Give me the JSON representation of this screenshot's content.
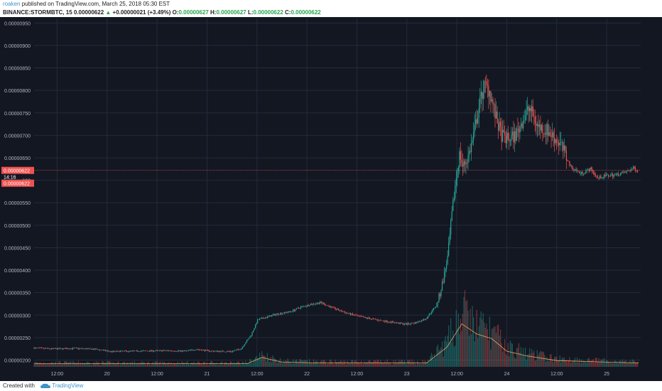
{
  "header": {
    "author": "roaken",
    "published": "published on TradingView.com, March 25, 2018 05:30 EST",
    "symbol": "BINANCE:STORMBTC, 15",
    "last": "0.00000622",
    "change_arrow": "▲",
    "change": "+0.00000021 (+3.49%)",
    "o_label": "O:",
    "o_value": "0.00000627",
    "h_label": "H:",
    "h_value": "0.00000627",
    "l_label": "L:",
    "l_value": "0.00000622",
    "c_label": "C:",
    "c_value": "0.00000622"
  },
  "footer": {
    "created_with": "Created with",
    "brand": "TradingView",
    "brand_icon": "tradingview-cloud-icon"
  },
  "colors": {
    "background": "#131722",
    "grid": "#232a3b",
    "up": "#26a69a",
    "down": "#ef5350",
    "volume_ma": "#e8a45c",
    "axis_text": "#b2b5be",
    "price_line": "#ef5350"
  },
  "price_tags": {
    "last_price": "0.00000622",
    "countdown": "14:16",
    "close": "0.00000622"
  },
  "chart_data": {
    "type": "candlestick",
    "title": "",
    "y_tick_labels": [
      "0.00000950",
      "0.00000900",
      "0.00000850",
      "0.00000800",
      "0.00000750",
      "0.00000700",
      "0.00000650",
      "0.00000600",
      "0.00000550",
      "0.00000500",
      "0.00000450",
      "0.00000400",
      "0.00000350",
      "0.00000300",
      "0.00000250",
      "0.00000200"
    ],
    "x_tick_labels": [
      "12:00",
      "20",
      "12:00",
      "21",
      "12:00",
      "22",
      "12:00",
      "23",
      "12:00",
      "24",
      "12:00",
      "25"
    ],
    "x_tick_times": [
      0.5,
      1.0,
      1.5,
      2.0,
      2.5,
      3.0,
      3.5,
      4.0,
      4.5,
      5.0,
      5.5,
      6.0
    ],
    "x_range_days": [
      0.27,
      6.34
    ],
    "ylim": [
      1.85e-06,
      9.6e-06
    ],
    "price_path": [
      [
        0.27,
        2.27e-06
      ],
      [
        0.45,
        2.25e-06
      ],
      [
        0.7,
        2.26e-06
      ],
      [
        0.9,
        2.24e-06
      ],
      [
        1.05,
        2.19e-06
      ],
      [
        1.3,
        2.2e-06
      ],
      [
        1.6,
        2.21e-06
      ],
      [
        1.8,
        2.2e-06
      ],
      [
        1.9,
        2.24e-06
      ],
      [
        2.05,
        2.2e-06
      ],
      [
        2.25,
        2.19e-06
      ],
      [
        2.35,
        2.25e-06
      ],
      [
        2.45,
        2.55e-06
      ],
      [
        2.52,
        2.9e-06
      ],
      [
        2.6,
        2.95e-06
      ],
      [
        2.7,
        3.02e-06
      ],
      [
        2.85,
        3.08e-06
      ],
      [
        2.95,
        3.18e-06
      ],
      [
        3.05,
        3.24e-06
      ],
      [
        3.15,
        3.28e-06
      ],
      [
        3.25,
        3.18e-06
      ],
      [
        3.4,
        3.05e-06
      ],
      [
        3.55,
        2.96e-06
      ],
      [
        3.75,
        2.88e-06
      ],
      [
        3.9,
        2.83e-06
      ],
      [
        4.0,
        2.8e-06
      ],
      [
        4.1,
        2.83e-06
      ],
      [
        4.2,
        2.92e-06
      ],
      [
        4.3,
        3.2e-06
      ],
      [
        4.34,
        3.45e-06
      ],
      [
        4.38,
        3.85e-06
      ],
      [
        4.42,
        4.3e-06
      ],
      [
        4.46,
        5.2e-06
      ],
      [
        4.5,
        6e-06
      ],
      [
        4.54,
        6.6e-06
      ],
      [
        4.57,
        6.3e-06
      ],
      [
        4.62,
        6.5e-06
      ],
      [
        4.67,
        6.9e-06
      ],
      [
        4.72,
        7.5e-06
      ],
      [
        4.78,
        8.1e-06
      ],
      [
        4.84,
        8e-06
      ],
      [
        4.9,
        7.4e-06
      ],
      [
        4.96,
        7e-06
      ],
      [
        5.02,
        6.9e-06
      ],
      [
        5.1,
        7e-06
      ],
      [
        5.18,
        7.4e-06
      ],
      [
        5.24,
        7.6e-06
      ],
      [
        5.32,
        7.2e-06
      ],
      [
        5.42,
        7.1e-06
      ],
      [
        5.55,
        6.8e-06
      ],
      [
        5.65,
        6.3e-06
      ],
      [
        5.75,
        6.15e-06
      ],
      [
        5.85,
        6.25e-06
      ],
      [
        5.92,
        6.05e-06
      ],
      [
        6.0,
        6.1e-06
      ],
      [
        6.1,
        6.12e-06
      ],
      [
        6.2,
        6.18e-06
      ],
      [
        6.28,
        6.27e-06
      ],
      [
        6.32,
        6.22e-06
      ]
    ],
    "volume_ma_path": [
      [
        0.27,
        0.04
      ],
      [
        2.4,
        0.04
      ],
      [
        2.55,
        0.12
      ],
      [
        2.75,
        0.06
      ],
      [
        3.1,
        0.05
      ],
      [
        4.2,
        0.05
      ],
      [
        4.4,
        0.25
      ],
      [
        4.55,
        0.55
      ],
      [
        4.7,
        0.42
      ],
      [
        4.85,
        0.36
      ],
      [
        5.0,
        0.2
      ],
      [
        5.2,
        0.14
      ],
      [
        5.5,
        0.08
      ],
      [
        6.0,
        0.06
      ],
      [
        6.32,
        0.05
      ]
    ],
    "last_price": 6.22e-06
  }
}
